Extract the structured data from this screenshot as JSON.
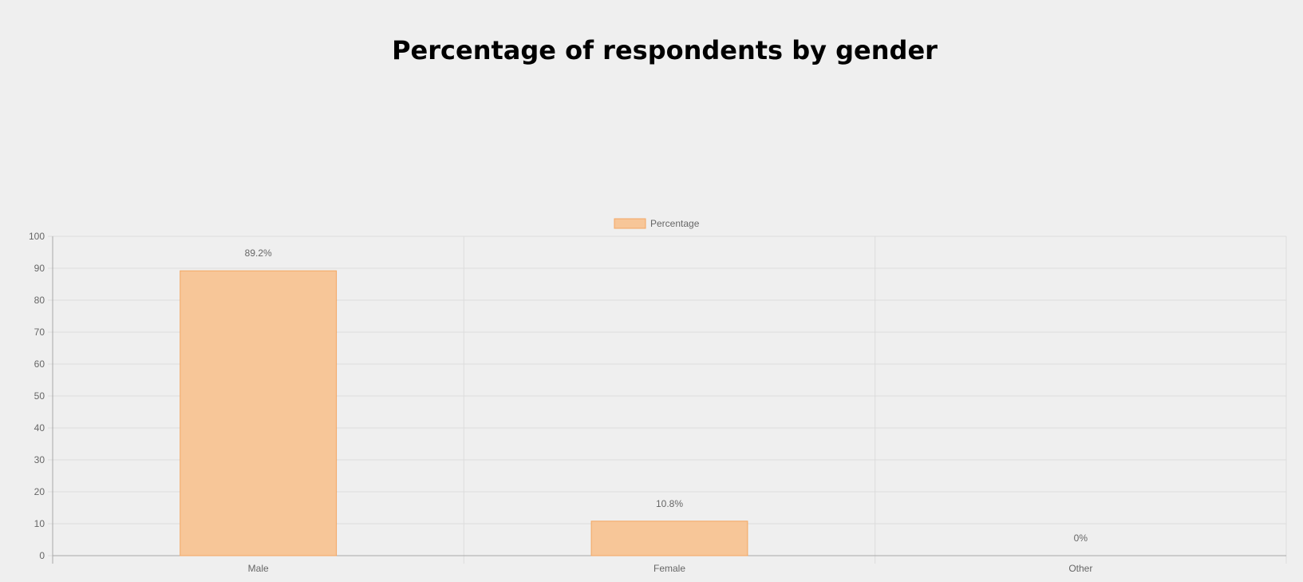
{
  "chart_data": {
    "type": "bar",
    "title": "Percentage of respondents by gender",
    "categories": [
      "Male",
      "Female",
      "Other"
    ],
    "series": [
      {
        "name": "Percentage",
        "values": [
          89.2,
          10.8,
          0
        ],
        "labels": [
          "89.2%",
          "10.8%",
          "0%"
        ]
      }
    ],
    "ylim": [
      0,
      100
    ],
    "yticks": [
      "0",
      "10",
      "20",
      "30",
      "40",
      "50",
      "60",
      "70",
      "80",
      "90",
      "100"
    ],
    "grid": true,
    "legend": "top-center",
    "colors": {
      "bar_fill": "#f7c698",
      "bar_stroke": "#f3a763",
      "grid": "#dcdcdc",
      "axis": "#a8a8a8",
      "text": "#666666"
    }
  }
}
